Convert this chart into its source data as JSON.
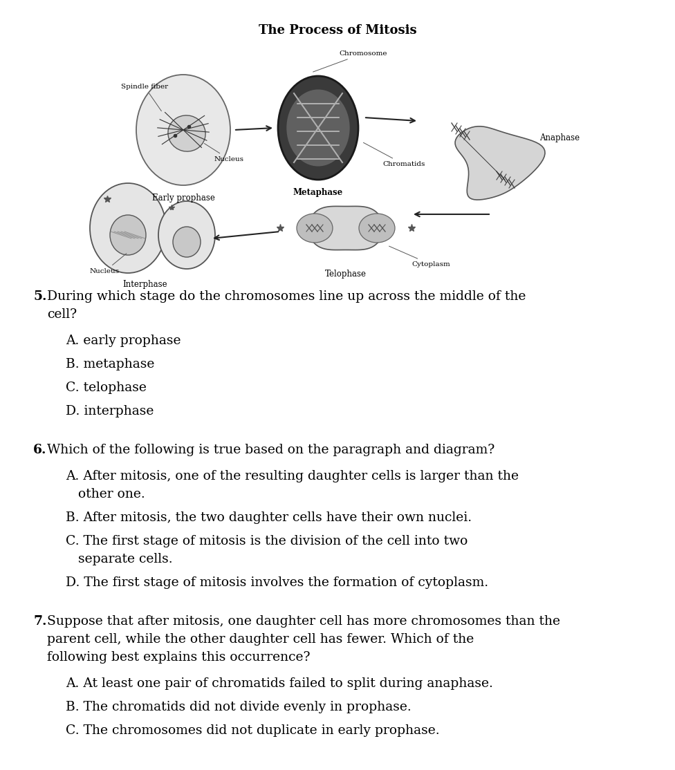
{
  "title": "The Process of Mitosis",
  "title_fontsize": 13,
  "background_color": "#ffffff",
  "text_color": "#000000",
  "font_family": "DejaVu Serif",
  "body_fontsize": 13.5,
  "diagram_label_fontsize": 7.5,
  "stage_label_fontsize": 8.5,
  "questions": [
    {
      "number": "5.",
      "question": " During which stage do the chromosomes line up across the middle of the cell?",
      "options": [
        "A. early prophase",
        "B. metaphase",
        "C. telophase",
        "D. interphase"
      ]
    },
    {
      "number": "6.",
      "question": " Which of the following is true based on the paragraph and diagram?",
      "options": [
        "A. After mitosis, one of the resulting daughter cells is larger than the other one.",
        "B. After mitosis, the two daughter cells have their own nuclei.",
        "C. The first stage of mitosis is the division of the cell into two separate cells.",
        "D. The first stage of mitosis involves the formation of cytoplasm."
      ]
    },
    {
      "number": "7.",
      "question": " Suppose that after mitosis, one daughter cell has more chromosomes than the parent cell, while the other daughter cell has fewer. Which of the following best explains this occurrence?",
      "options": [
        "A. At least one pair of chromatids failed to split during anaphase.",
        "B. The chromatids did not divide evenly in prophase.",
        "C. The chromosomes did not duplicate in early prophase."
      ]
    }
  ]
}
